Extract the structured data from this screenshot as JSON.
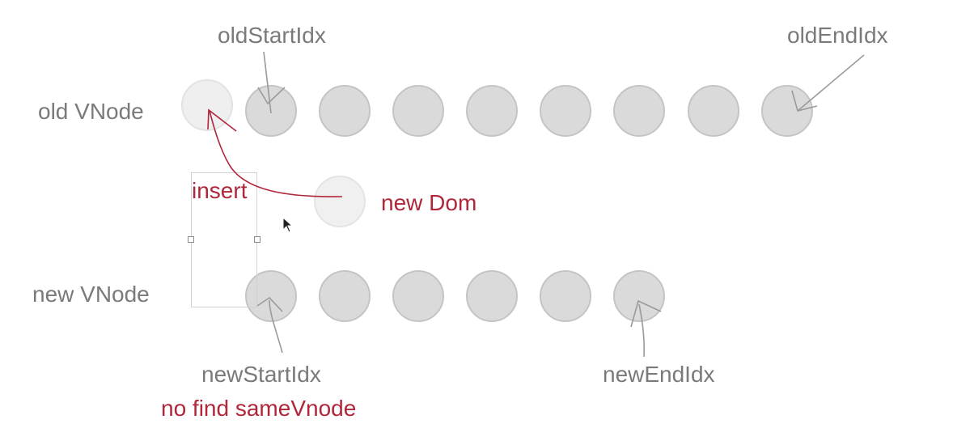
{
  "rows": {
    "old_label": "old VNode",
    "new_label": "new VNode"
  },
  "pointers": {
    "old_start": "oldStartIdx",
    "old_end": "oldEndIdx",
    "new_start": "newStartIdx",
    "new_end": "newEndIdx"
  },
  "annotations": {
    "insert": "insert",
    "new_dom": "new Dom",
    "no_find": "no find sameVnode"
  },
  "nodes": {
    "old_count": 8,
    "new_count": 6,
    "inserted_count": 1
  },
  "colors": {
    "node_fill": "#dadada",
    "node_stroke": "#c4c4c4",
    "ghost_fill": "#efefef",
    "text_gray": "#7a7a7a",
    "accent_red": "#b0263a",
    "pointer_line": "#9a9a9a"
  }
}
